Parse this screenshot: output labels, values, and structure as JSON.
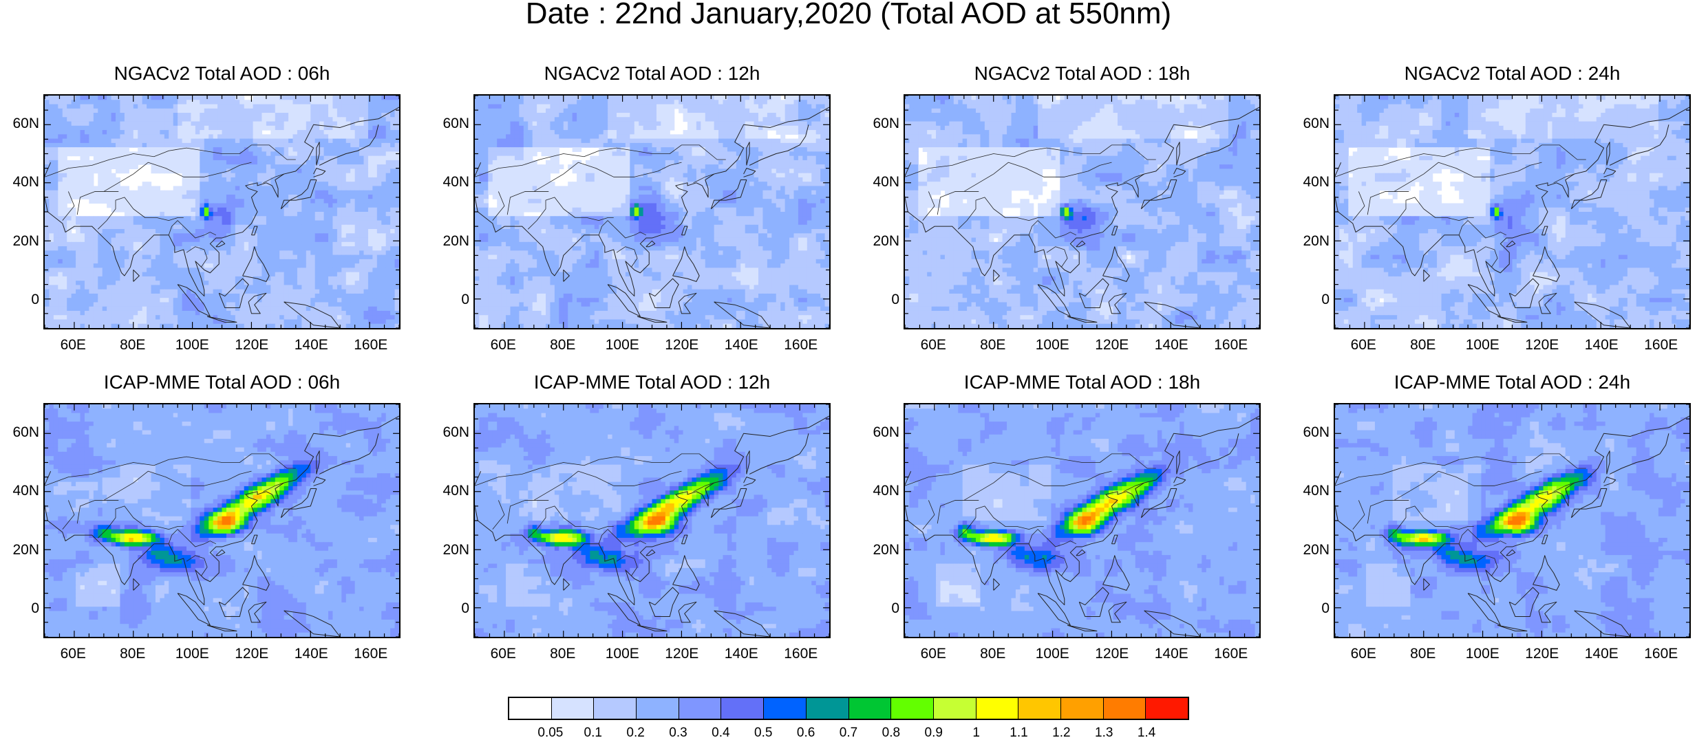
{
  "title": "Date : 22nd January,2020 (Total AOD at 550nm)",
  "panels": [
    {
      "title": "NGACv2 Total AOD : 06h",
      "model": "ngac",
      "seed": 6
    },
    {
      "title": "NGACv2 Total AOD : 12h",
      "model": "ngac",
      "seed": 12
    },
    {
      "title": "NGACv2 Total AOD : 18h",
      "model": "ngac",
      "seed": 18
    },
    {
      "title": "NGACv2 Total AOD : 24h",
      "model": "ngac",
      "seed": 24
    },
    {
      "title": "ICAP-MME Total AOD : 06h",
      "model": "icap",
      "seed": 106
    },
    {
      "title": "ICAP-MME Total AOD : 12h",
      "model": "icap",
      "seed": 112
    },
    {
      "title": "ICAP-MME Total AOD : 18h",
      "model": "icap",
      "seed": 118
    },
    {
      "title": "ICAP-MME Total AOD : 24h",
      "model": "icap",
      "seed": 124
    }
  ],
  "lat_ticks": [
    "60N",
    "40N",
    "20N",
    "0"
  ],
  "lon_ticks": [
    "60E",
    "80E",
    "100E",
    "120E",
    "140E",
    "160E"
  ],
  "colorbar": {
    "labels": [
      "0.05",
      "0.1",
      "0.2",
      "0.3",
      "0.4",
      "0.5",
      "0.6",
      "0.7",
      "0.8",
      "0.9",
      "1",
      "1.1",
      "1.2",
      "1.3",
      "1.4"
    ],
    "colors": [
      "#ffffff",
      "#d6e2ff",
      "#b5c9ff",
      "#8eb2ff",
      "#7f96ff",
      "#6370f8",
      "#0063ff",
      "#009696",
      "#00c633",
      "#63ff00",
      "#96ff00",
      "#c6ff33",
      "#ffff00",
      "#ffc600",
      "#ffa000",
      "#ff7c00",
      "#ff1900"
    ]
  }
}
